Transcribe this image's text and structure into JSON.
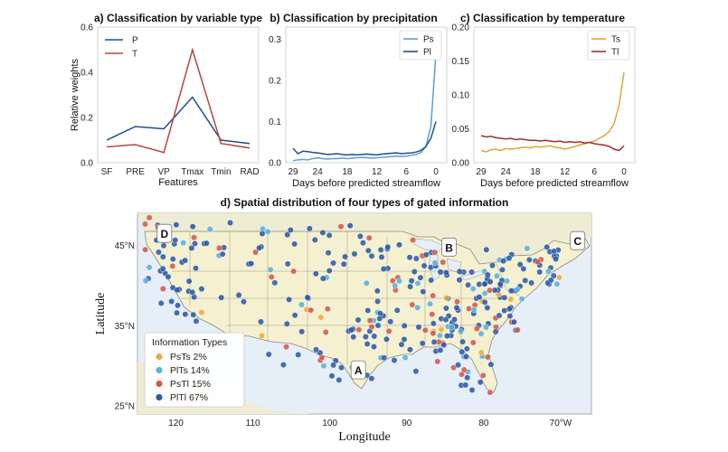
{
  "chart_data": [
    {
      "type": "line",
      "title": "a) Classification by variable type",
      "xlabel": "Features",
      "ylabel": "Relative weights",
      "categories": [
        "SF",
        "PRE",
        "VP",
        "Tmax",
        "Tmin",
        "RAD"
      ],
      "ylim": [
        0,
        0.6
      ],
      "yticks": [
        "0.0",
        "0.2",
        "0.4",
        "0.6"
      ],
      "legend": "top-left",
      "series": [
        {
          "name": "P",
          "color": "#1f4e8c",
          "values": [
            0.1,
            0.16,
            0.15,
            0.29,
            0.1,
            0.085
          ]
        },
        {
          "name": "T",
          "color": "#b5463c",
          "values": [
            0.07,
            0.08,
            0.045,
            0.5,
            0.085,
            0.065
          ]
        }
      ]
    },
    {
      "type": "line",
      "title": "b) Classification by precipitation",
      "xlabel": "Days before predicted streamflow",
      "xticks": [
        "29",
        "24",
        "18",
        "12",
        "6",
        "0"
      ],
      "xlim": [
        29,
        0
      ],
      "ylim": [
        0,
        0.33
      ],
      "yticks": [
        "0.0",
        "0.1",
        "0.2",
        "0.3"
      ],
      "legend": "top-right",
      "x": [
        29,
        28,
        27,
        26,
        25,
        24,
        23,
        22,
        21,
        20,
        19,
        18,
        17,
        16,
        15,
        14,
        13,
        12,
        11,
        10,
        9,
        8,
        7,
        6,
        5,
        4,
        3,
        2,
        1,
        0
      ],
      "series": [
        {
          "name": "Ps",
          "color": "#5aa0cf",
          "values": [
            0.005,
            0.007,
            0.008,
            0.007,
            0.01,
            0.012,
            0.01,
            0.009,
            0.01,
            0.01,
            0.011,
            0.01,
            0.011,
            0.012,
            0.013,
            0.012,
            0.011,
            0.012,
            0.013,
            0.014,
            0.015,
            0.016,
            0.015,
            0.016,
            0.018,
            0.02,
            0.025,
            0.04,
            0.09,
            0.265
          ]
        },
        {
          "name": "Pl",
          "color": "#1f4e8c",
          "values": [
            0.035,
            0.022,
            0.028,
            0.027,
            0.025,
            0.024,
            0.022,
            0.02,
            0.021,
            0.022,
            0.02,
            0.019,
            0.02,
            0.019,
            0.02,
            0.021,
            0.02,
            0.019,
            0.021,
            0.022,
            0.023,
            0.024,
            0.022,
            0.023,
            0.024,
            0.026,
            0.03,
            0.04,
            0.06,
            0.1
          ]
        }
      ]
    },
    {
      "type": "line",
      "title": "c) Classification by temperature",
      "xlabel": "Days before predicted streamflow",
      "xticks": [
        "29",
        "24",
        "18",
        "12",
        "6",
        "0"
      ],
      "xlim": [
        29,
        0
      ],
      "ylim": [
        0,
        0.2
      ],
      "yticks": [
        "0.00",
        "0.05",
        "0.10",
        "0.15",
        "0.20"
      ],
      "legend": "top-right",
      "x": [
        29,
        28,
        27,
        26,
        25,
        24,
        23,
        22,
        21,
        20,
        19,
        18,
        17,
        16,
        15,
        14,
        13,
        12,
        11,
        10,
        9,
        8,
        7,
        6,
        5,
        4,
        3,
        2,
        1,
        0
      ],
      "series": [
        {
          "name": "Ts",
          "color": "#e3a23a",
          "values": [
            0.018,
            0.016,
            0.019,
            0.02,
            0.018,
            0.021,
            0.02,
            0.021,
            0.022,
            0.023,
            0.022,
            0.024,
            0.023,
            0.024,
            0.025,
            0.023,
            0.022,
            0.02,
            0.022,
            0.024,
            0.026,
            0.028,
            0.03,
            0.032,
            0.036,
            0.04,
            0.046,
            0.058,
            0.085,
            0.133
          ]
        },
        {
          "name": "Tl",
          "color": "#9e2f2f",
          "values": [
            0.04,
            0.038,
            0.039,
            0.037,
            0.036,
            0.035,
            0.036,
            0.034,
            0.035,
            0.034,
            0.033,
            0.033,
            0.032,
            0.033,
            0.032,
            0.031,
            0.032,
            0.03,
            0.031,
            0.03,
            0.031,
            0.029,
            0.03,
            0.028,
            0.027,
            0.026,
            0.024,
            0.02,
            0.018,
            0.025
          ]
        }
      ]
    },
    {
      "type": "scatter",
      "title": "d) Spatial distribution of four types of gated information",
      "xlabel": "Longitude",
      "ylabel": "Latitude",
      "xlim": [
        125,
        66
      ],
      "ylim": [
        24,
        49
      ],
      "xticks": [
        {
          "value": 120,
          "label": "120"
        },
        {
          "value": 110,
          "label": "110"
        },
        {
          "value": 100,
          "label": "100"
        },
        {
          "value": 90,
          "label": "90"
        },
        {
          "value": 80,
          "label": "80"
        },
        {
          "value": 70,
          "label": "70°W"
        }
      ],
      "yticks": [
        {
          "value": 25,
          "label": "25°N"
        },
        {
          "value": 35,
          "label": "35°N"
        },
        {
          "value": 45,
          "label": "45°N"
        }
      ],
      "legend": {
        "title": "Information Types",
        "placement": "bottom-left",
        "entries": [
          {
            "label": "PsTs 2%",
            "color": "#f0a93b"
          },
          {
            "label": "PlTs 14%",
            "color": "#5ab1dc"
          },
          {
            "label": "PsTl 15%",
            "color": "#cf5a4a"
          },
          {
            "label": "PlTl 67%",
            "color": "#2c5aa6"
          }
        ]
      },
      "annotations": [
        {
          "label": "A",
          "lon": 96.3,
          "lat": 29.5
        },
        {
          "label": "B",
          "lon": 84.5,
          "lat": 44.8
        },
        {
          "label": "C",
          "lon": 67.8,
          "lat": 45.6
        },
        {
          "label": "D",
          "lon": 121.5,
          "lat": 46.5
        }
      ]
    }
  ]
}
